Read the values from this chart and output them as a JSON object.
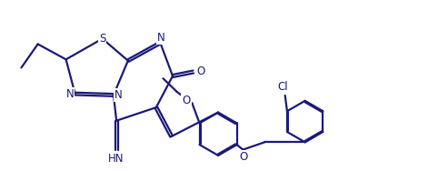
{
  "bg_color": "#ffffff",
  "line_color": "#1a1a7a",
  "line_width": 1.6,
  "text_color": "#1a1a7a",
  "font_size": 8.5,
  "figsize": [
    4.82,
    1.88
  ],
  "dpi": 100,
  "xlim": [
    0,
    10
  ],
  "ylim": [
    0,
    4.1
  ]
}
